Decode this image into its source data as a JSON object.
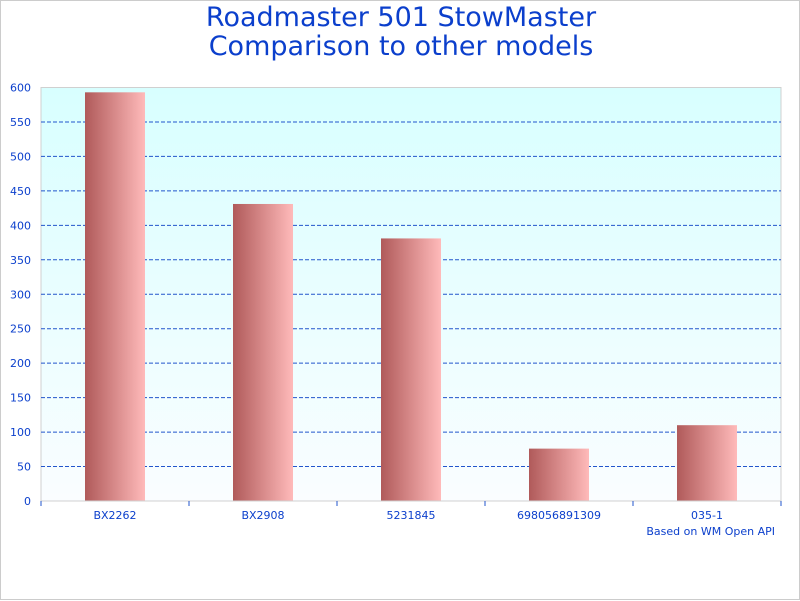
{
  "chart_data": {
    "type": "bar",
    "title": [
      "Roadmaster 501 StowMaster",
      "Comparison to other models"
    ],
    "categories": [
      "BX2262",
      "BX2908",
      "5231845",
      "698056891309",
      "035-1"
    ],
    "values": [
      593,
      431,
      381,
      76,
      110
    ],
    "ylim": [
      0,
      600
    ],
    "yticks": [
      0,
      50,
      100,
      150,
      200,
      250,
      300,
      350,
      400,
      450,
      500,
      550,
      600
    ],
    "grid": true,
    "footnote": "Based on WM Open API",
    "colors": {
      "bar_dark": "#b05a5a",
      "bar_light": "#ffbaba",
      "text": "#0b3fcc",
      "grid": "#2255cc",
      "plot_top": "#d8ffff",
      "plot_bottom": "#fafdff"
    }
  }
}
